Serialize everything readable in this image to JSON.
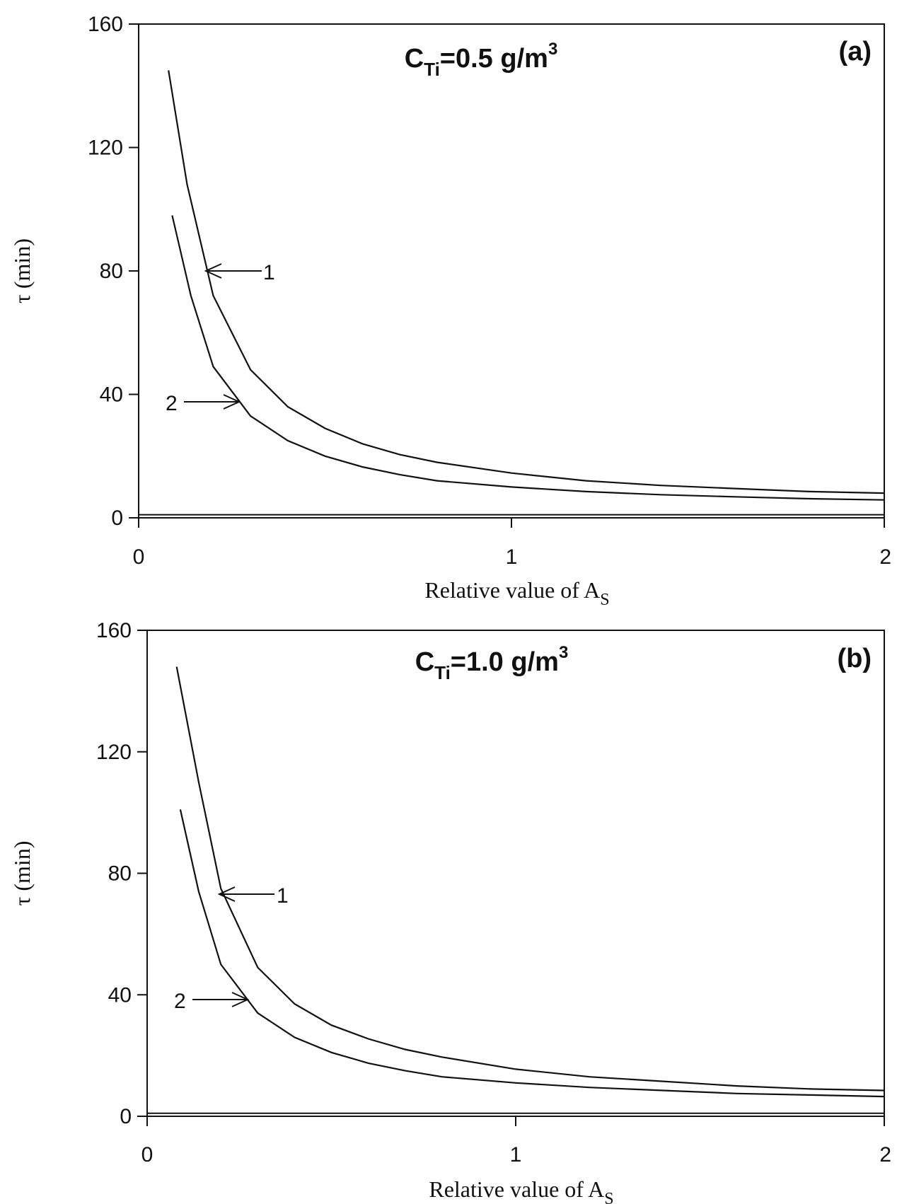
{
  "chart_data": [
    {
      "type": "line",
      "title": "C",
      "title_sub": "Ti",
      "title_main": "=0.5 g/m",
      "title_sup": "3",
      "panel_tag": "(a)",
      "xlabel": "Relative value of A",
      "xlabel_sub": "S",
      "ylabel": "τ (min)",
      "xlim": [
        0,
        2
      ],
      "ylim": [
        0,
        160
      ],
      "x_ticks": [
        "0",
        "1",
        "2"
      ],
      "y_ticks": [
        "0",
        "40",
        "80",
        "120",
        "160"
      ],
      "baseline": 1,
      "series": [
        {
          "label": "1",
          "x": [
            0.08,
            0.13,
            0.2,
            0.3,
            0.4,
            0.5,
            0.6,
            0.7,
            0.8,
            1.0,
            1.2,
            1.4,
            1.6,
            1.8,
            2.0
          ],
          "y": [
            145,
            108,
            72,
            48,
            36,
            29,
            24,
            20.5,
            18,
            14.5,
            12,
            10.5,
            9.5,
            8.5,
            8
          ]
        },
        {
          "label": "2",
          "x": [
            0.09,
            0.14,
            0.2,
            0.3,
            0.4,
            0.5,
            0.6,
            0.7,
            0.8,
            1.0,
            1.2,
            1.4,
            1.6,
            1.8,
            2.0
          ],
          "y": [
            98,
            72,
            49,
            33,
            25,
            20,
            16.5,
            14,
            12,
            10,
            8.5,
            7.5,
            6.8,
            6.2,
            5.8
          ]
        }
      ]
    },
    {
      "type": "line",
      "title": "C",
      "title_sub": "Ti",
      "title_main": "=1.0 g/m",
      "title_sup": "3",
      "panel_tag": "(b)",
      "xlabel": "Relative value of A",
      "xlabel_sub": "S",
      "ylabel": "τ (min)",
      "xlim": [
        0,
        2
      ],
      "ylim": [
        0,
        160
      ],
      "x_ticks": [
        "0",
        "1",
        "2"
      ],
      "y_ticks": [
        "0",
        "40",
        "80",
        "120",
        "160"
      ],
      "baseline": 1,
      "series": [
        {
          "label": "1",
          "x": [
            0.08,
            0.14,
            0.2,
            0.3,
            0.4,
            0.5,
            0.6,
            0.7,
            0.8,
            1.0,
            1.2,
            1.4,
            1.6,
            1.8,
            2.0
          ],
          "y": [
            148,
            110,
            75,
            49,
            37,
            30,
            25.5,
            22,
            19.5,
            15.5,
            13,
            11.5,
            10,
            9,
            8.5
          ]
        },
        {
          "label": "2",
          "x": [
            0.09,
            0.14,
            0.2,
            0.3,
            0.4,
            0.5,
            0.6,
            0.7,
            0.8,
            1.0,
            1.2,
            1.4,
            1.6,
            1.8,
            2.0
          ],
          "y": [
            101,
            74,
            50,
            34,
            26,
            21,
            17.5,
            15,
            13,
            11,
            9.5,
            8.5,
            7.5,
            7,
            6.5
          ]
        }
      ]
    }
  ]
}
